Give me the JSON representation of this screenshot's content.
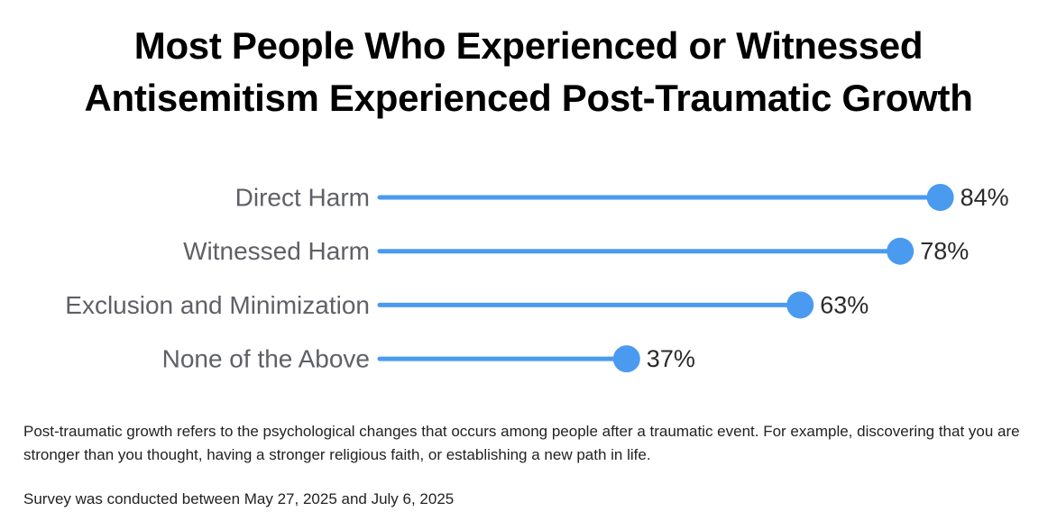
{
  "title": {
    "line1": "Most People Who Experienced or Witnessed",
    "line2": "Antisemitism Experienced Post-Traumatic Growth"
  },
  "chart_data": {
    "type": "dot-bar",
    "categories": [
      "Direct Harm",
      "Witnessed Harm",
      "Exclusion and Minimization",
      "None of the Above"
    ],
    "values": [
      84,
      78,
      63,
      37
    ],
    "value_labels": [
      "84%",
      "78%",
      "63%",
      "37%"
    ],
    "unit": "%",
    "xlim": [
      0,
      100
    ],
    "grid": false,
    "legend": "none",
    "color": "#4a9af0"
  },
  "notes": {
    "definition": "Post-traumatic growth refers to the psychological changes that occurs among people after a traumatic event. For example, discovering that you are stronger than you thought, having a stronger religious faith, or establishing a new path in life.",
    "survey_dates": "Survey was conducted between May 27, 2025 and July 6, 2025"
  }
}
